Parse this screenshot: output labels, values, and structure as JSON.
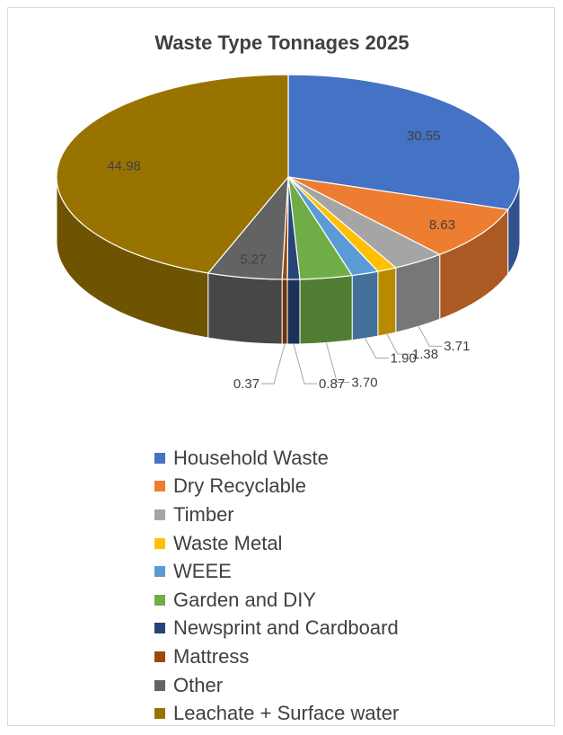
{
  "chart_data": {
    "type": "pie",
    "title": "Waste Type Tonnages 2025",
    "series": [
      {
        "name": "Household Waste",
        "value": 30.55,
        "label": "30.55",
        "color": "#4472C4"
      },
      {
        "name": "Dry Recyclable",
        "value": 8.63,
        "label": "8.63",
        "color": "#ED7D31"
      },
      {
        "name": "Timber",
        "value": 3.71,
        "label": "3.71",
        "color": "#A5A5A5"
      },
      {
        "name": "Waste Metal",
        "value": 1.38,
        "label": "1.38",
        "color": "#FFC000"
      },
      {
        "name": "WEEE",
        "value": 1.9,
        "label": "1.90",
        "color": "#5B9BD5"
      },
      {
        "name": "Garden and DIY",
        "value": 3.7,
        "label": "3.70",
        "color": "#70AD47"
      },
      {
        "name": "Newsprint and Cardboard",
        "value": 0.87,
        "label": "0.87",
        "color": "#264478"
      },
      {
        "name": "Mattress",
        "value": 0.37,
        "label": "0.37",
        "color": "#9E480E"
      },
      {
        "name": "Other",
        "value": 5.27,
        "label": "5.27",
        "color": "#636363"
      },
      {
        "name": "Leachate + Surface water",
        "value": 44.98,
        "label": "44.98",
        "color": "#997300"
      }
    ],
    "legend_position": "bottom",
    "style": "3d"
  }
}
